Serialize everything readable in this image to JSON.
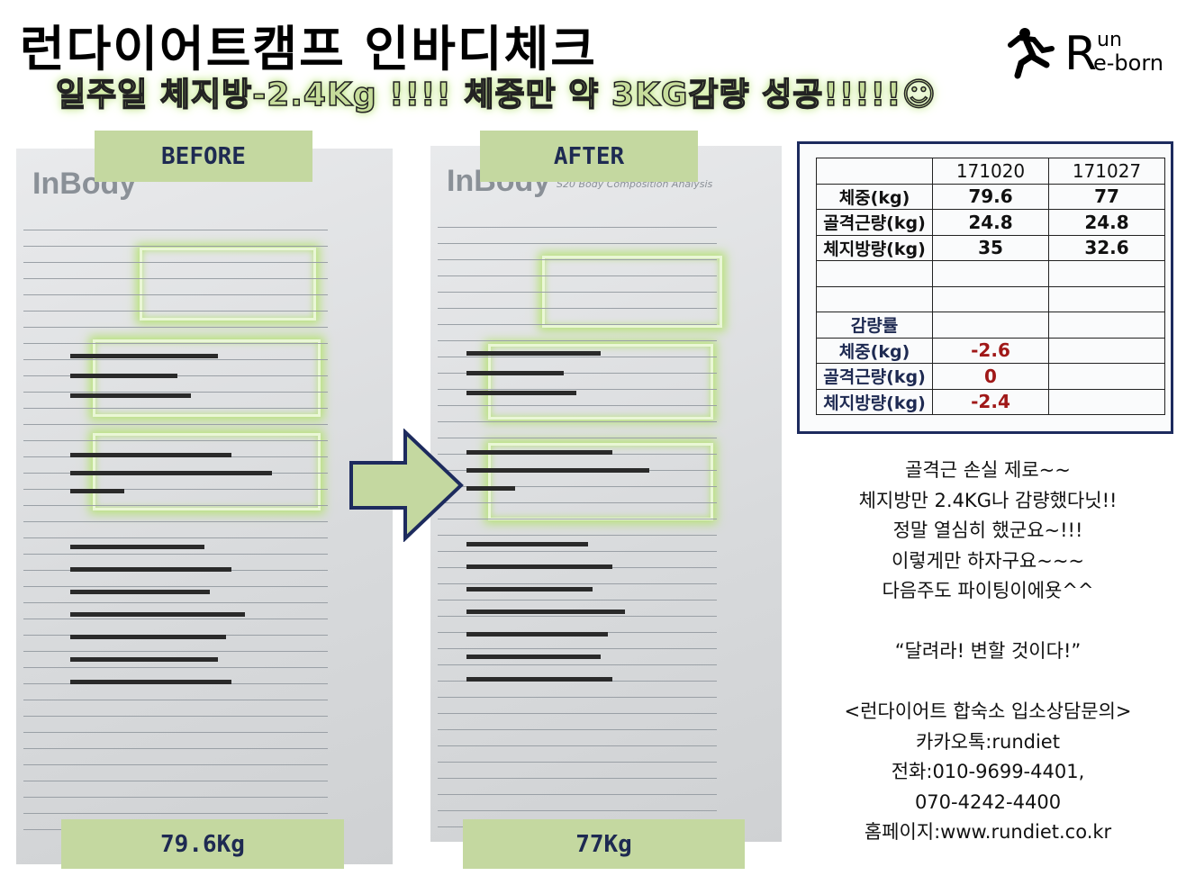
{
  "header": {
    "title": "런다이어트캠프 인바디체크",
    "subtitle": "일주일 체지방-2.4Kg !!!! 체중만 약 3KG감량 성공!!!!!☺"
  },
  "logo": {
    "line1": "un",
    "line2": "e-born",
    "letter": "R",
    "icon": "running-man-icon"
  },
  "before": {
    "label": "BEFORE",
    "weight_label": "79.6Kg",
    "scan_brand": "InBody"
  },
  "after": {
    "label": "AFTER",
    "weight_label": "77Kg",
    "scan_brand": "InBody",
    "scan_sub": "S20 Body Composition Analysis"
  },
  "arrow": {
    "icon": "right-arrow-icon",
    "fill": "#c4d8a0",
    "stroke": "#1d2b5e"
  },
  "table": {
    "columns": [
      "",
      "171020",
      "171027"
    ],
    "rows": [
      [
        "체중(kg)",
        "79.6",
        "77"
      ],
      [
        "골격근량(kg)",
        "24.8",
        "24.8"
      ],
      [
        "체지방량(kg)",
        "35",
        "32.6"
      ],
      [
        "",
        "",
        ""
      ],
      [
        "",
        "",
        ""
      ],
      [
        "감량률",
        "",
        ""
      ],
      [
        "체중(kg)",
        "-2.6",
        ""
      ],
      [
        "골격근량(kg)",
        "0",
        ""
      ],
      [
        "체지방량(kg)",
        "-2.4",
        ""
      ]
    ]
  },
  "notes": [
    "골격근 손실 제로~~",
    "체지방만 2.4KG나 감량했다닛!!",
    "정말 열심히 했군요~!!!",
    "이렇게만 하자구요~~~",
    "다음주도 파이팅이에욧^^",
    "",
    "“달려라! 변할 것이다!”",
    "",
    "<런다이어트 합숙소 입소상담문의>",
    "카카오톡:rundiet",
    "전화:010-9699-4401,",
    "070-4242-4400",
    "홈페이지:www.rundiet.co.kr"
  ]
}
